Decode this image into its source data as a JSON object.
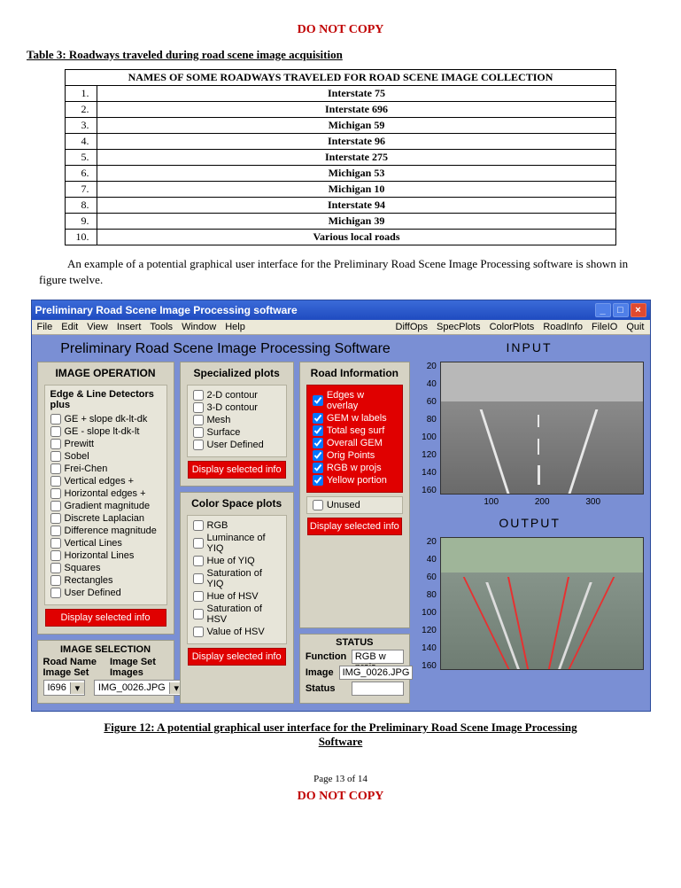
{
  "doc": {
    "watermark": "DO NOT COPY",
    "table_title": "Table 3: Roadways traveled during road scene image acquisition",
    "table_header": "NAMES OF SOME ROADWAYS TRAVELED FOR ROAD SCENE IMAGE COLLECTION",
    "roadways": [
      {
        "n": "1.",
        "name": "Interstate 75"
      },
      {
        "n": "2.",
        "name": "Interstate 696"
      },
      {
        "n": "3.",
        "name": "Michigan 59"
      },
      {
        "n": "4.",
        "name": "Interstate 96"
      },
      {
        "n": "5.",
        "name": "Interstate 275"
      },
      {
        "n": "6.",
        "name": "Michigan 53"
      },
      {
        "n": "7.",
        "name": "Michigan 10"
      },
      {
        "n": "8.",
        "name": "Interstate 94"
      },
      {
        "n": "9.",
        "name": "Michigan 39"
      },
      {
        "n": "10.",
        "name": "Various local  roads"
      }
    ],
    "paragraph": "An example of a potential graphical user interface for the Preliminary Road Scene Image Processing software is shown in figure twelve.",
    "figure_caption_l1": "Figure 12: A potential graphical user interface for the Preliminary Road Scene Image Processing",
    "figure_caption_l2": "Software",
    "page_number": "Page 13 of 14"
  },
  "win": {
    "title": "Preliminary Road Scene Image Processing software",
    "app_title": "Preliminary Road Scene Image Processing Software",
    "menu_left": [
      "File",
      "Edit",
      "View",
      "Insert",
      "Tools",
      "Window",
      "Help"
    ],
    "menu_right": [
      "DiffOps",
      "SpecPlots",
      "ColorPlots",
      "RoadInfo",
      "FileIO",
      "Quit"
    ],
    "image_op_header": "IMAGE OPERATION",
    "edge_group_title": "Edge & Line Detectors plus",
    "edge_items": [
      "GE + slope dk-lt-dk",
      "GE - slope lt-dk-lt",
      "Prewitt",
      "Sobel",
      "Frei-Chen",
      "Vertical edges +",
      "Horizontal edges +",
      "Gradient magnitude",
      "Discrete Laplacian",
      "Difference magnitude",
      "Vertical Lines",
      "Horizontal Lines",
      "Squares",
      "Rectangles",
      "User Defined"
    ],
    "display_btn": "Display selected info",
    "spec_header": "Specialized plots",
    "spec_items": [
      "2-D contour",
      "3-D contour",
      "Mesh",
      "Surface",
      "User Defined"
    ],
    "color_header": "Color Space plots",
    "color_items": [
      "RGB",
      "Luminance of YIQ",
      "Hue of YIQ",
      "Saturation of YIQ",
      "Hue of HSV",
      "Saturation of HSV",
      "Value of HSV"
    ],
    "road_header": "Road Information",
    "road_red_items": [
      "Edges w overlay",
      "GEM w labels",
      "Total seg surf",
      "Overall GEM",
      "Orig Points",
      "RGB w projs",
      "Yellow portion"
    ],
    "road_unused": "Unused",
    "image_sel_header": "IMAGE SELECTION",
    "sel_label1": "Road Name Image Set",
    "sel_label2": "Image Set Images",
    "sel_val1": "I696",
    "sel_val2": "IMG_0026.JPG",
    "status_header": "STATUS",
    "status_function_lab": "Function",
    "status_function_val": "RGB w projs",
    "status_image_lab": "Image",
    "status_image_val": "IMG_0026.JPG",
    "status_status_lab": "Status",
    "status_status_val": "",
    "input_label": "INPUT",
    "output_label": "OUTPUT",
    "input_axes": {
      "yticks": [
        20,
        40,
        60,
        80,
        100,
        120,
        140,
        160
      ],
      "xticks": [
        100,
        200,
        300
      ]
    },
    "output_axes": {
      "yticks": [
        20,
        40,
        60,
        80,
        100,
        120,
        140,
        160
      ]
    }
  }
}
